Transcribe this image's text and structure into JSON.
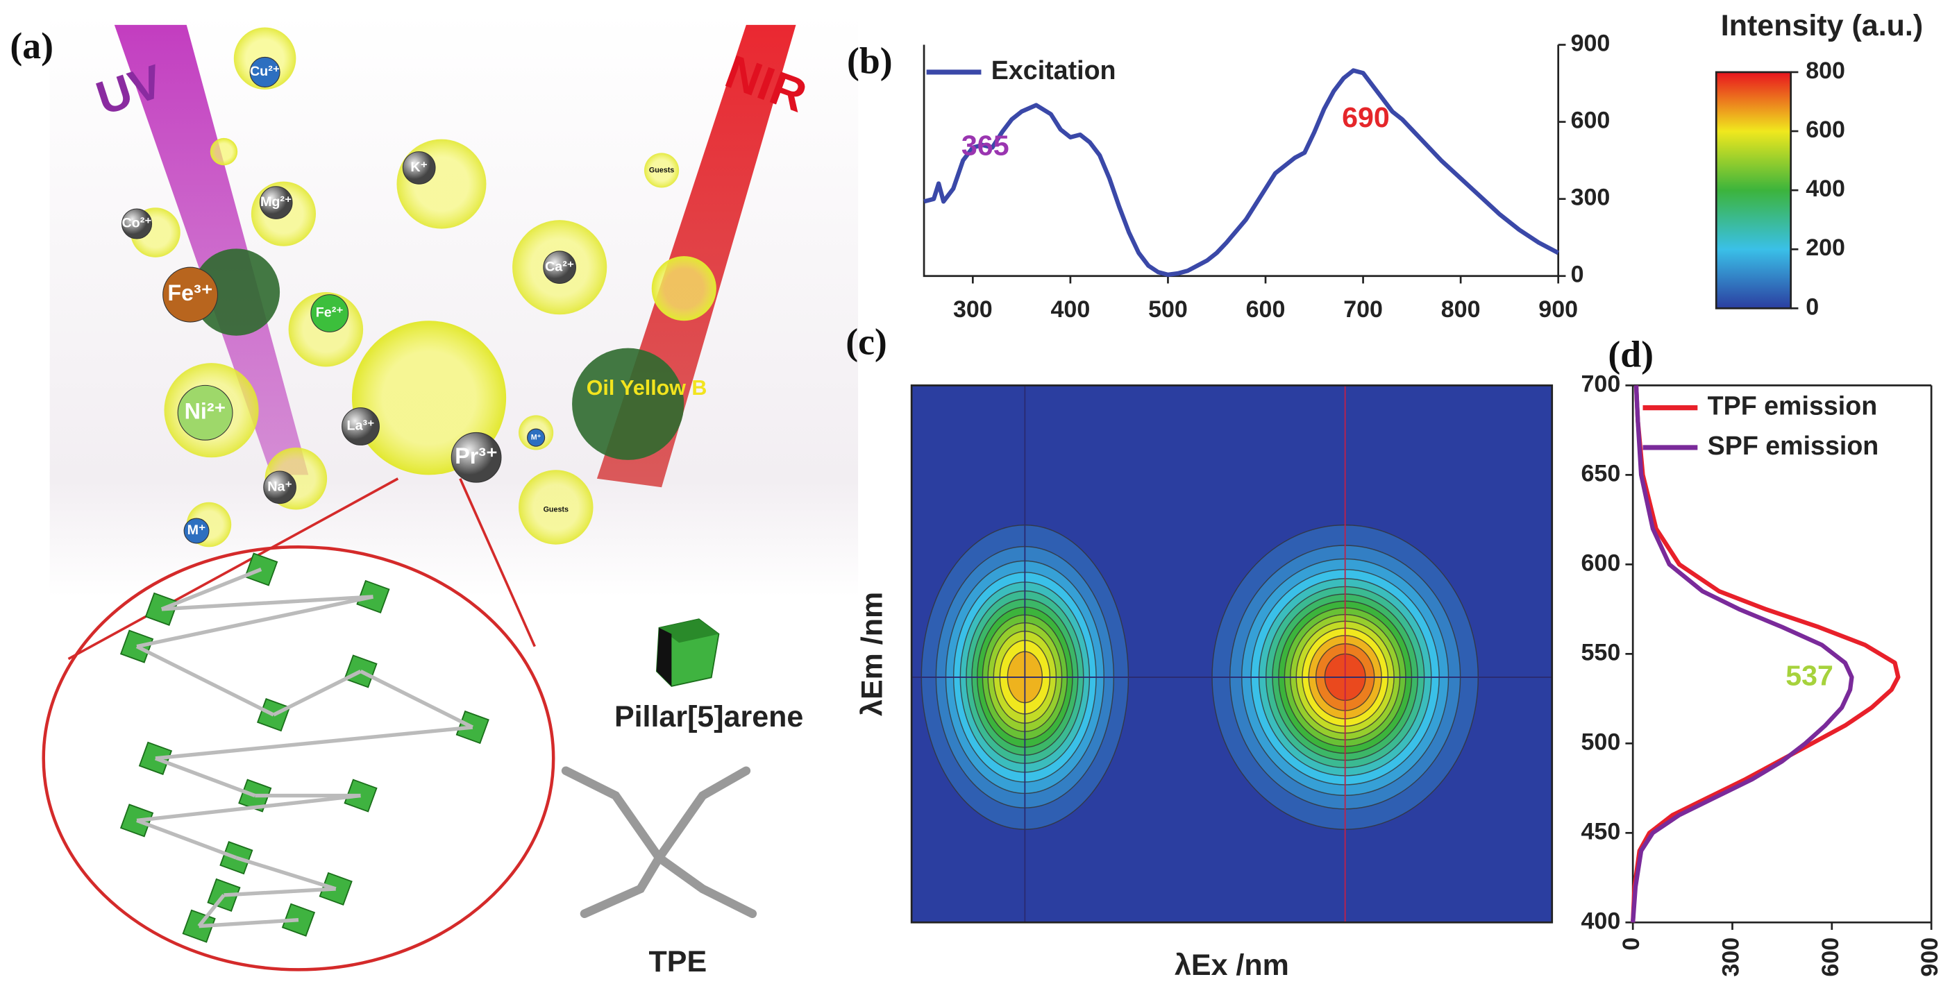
{
  "illustration": {
    "panel_label": "(a)",
    "beams": [
      "UV",
      "NIR"
    ],
    "labels": [
      "Cu²⁺",
      "K⁺",
      "Guests",
      "Mg²⁺",
      "Co²⁺",
      "Fe³⁺",
      "Fe²⁺",
      "Ca²⁺",
      "Ni²⁺",
      "La³⁺",
      "Pr³⁺",
      "Na⁺",
      "M⁺",
      "Guests",
      "Oil Yellow B",
      "M⁺"
    ],
    "molecules": [
      "Pillar[5]arene",
      "TPE"
    ]
  },
  "chart_data": [
    {
      "type": "line",
      "panel_label": "(b)",
      "x": [
        250,
        260,
        265,
        270,
        280,
        290,
        300,
        310,
        320,
        330,
        340,
        350,
        365,
        380,
        390,
        400,
        410,
        420,
        430,
        440,
        450,
        460,
        470,
        480,
        490,
        500,
        510,
        520,
        530,
        540,
        550,
        560,
        580,
        600,
        610,
        620,
        630,
        640,
        650,
        660,
        670,
        680,
        690,
        700,
        710,
        720,
        730,
        740,
        750,
        760,
        780,
        800,
        820,
        840,
        860,
        880,
        900
      ],
      "series": [
        {
          "name": "Excitation",
          "color": "#3a48a8",
          "values": [
            290,
            300,
            360,
            290,
            340,
            450,
            500,
            510,
            500,
            560,
            610,
            640,
            665,
            630,
            570,
            540,
            550,
            520,
            470,
            380,
            270,
            170,
            90,
            40,
            15,
            5,
            10,
            20,
            40,
            60,
            90,
            130,
            220,
            340,
            400,
            430,
            460,
            480,
            560,
            650,
            720,
            770,
            800,
            790,
            740,
            690,
            640,
            610,
            570,
            530,
            450,
            380,
            310,
            240,
            180,
            130,
            90
          ]
        }
      ],
      "annotations": [
        {
          "text": "365",
          "color": "#9a35b0"
        },
        {
          "text": "690",
          "color": "#e5262a"
        }
      ],
      "xlim": [
        250,
        900
      ],
      "xticks": [
        300,
        400,
        500,
        600,
        700,
        800,
        900
      ],
      "ylim": [
        0,
        900
      ],
      "yticks": [
        0,
        300,
        600,
        900
      ]
    },
    {
      "type": "contour",
      "panel_label": "(c)",
      "xlabel": "λEx /nm",
      "ylabel": "λEm /nm",
      "xlim": [
        250,
        900
      ],
      "ylim": [
        400,
        700
      ],
      "peaks": [
        {
          "x": 365,
          "y": 537,
          "value": 700
        },
        {
          "x": 690,
          "y": 537,
          "value": 800
        }
      ],
      "levels": [
        50,
        100,
        150,
        200,
        250,
        300,
        350,
        400,
        450,
        500,
        550,
        600,
        650,
        700,
        750
      ]
    },
    {
      "type": "line",
      "orientation": "horizontal",
      "panel_label": "(d)",
      "y": [
        400,
        420,
        440,
        450,
        460,
        470,
        480,
        490,
        500,
        510,
        520,
        530,
        537,
        545,
        555,
        565,
        575,
        585,
        600,
        620,
        650,
        680,
        700
      ],
      "series": [
        {
          "name": "TPF emission",
          "color": "#e8202a",
          "values": [
            0,
            5,
            20,
            50,
            120,
            230,
            340,
            440,
            540,
            640,
            720,
            780,
            800,
            790,
            700,
            560,
            400,
            260,
            140,
            70,
            30,
            15,
            10
          ]
        },
        {
          "name": "SPF emission",
          "color": "#7a2a9a",
          "values": [
            0,
            8,
            25,
            60,
            140,
            250,
            360,
            450,
            520,
            580,
            630,
            655,
            660,
            640,
            570,
            450,
            320,
            210,
            110,
            60,
            25,
            15,
            10
          ]
        }
      ],
      "annotations": [
        {
          "text": "537",
          "color": "#a6d23c"
        }
      ],
      "xlim": [
        0,
        900
      ],
      "xticks": [
        0,
        300,
        600,
        900
      ],
      "ylim": [
        400,
        700
      ],
      "yticks": [
        400,
        450,
        500,
        550,
        600,
        650,
        700
      ]
    },
    {
      "type": "colorbar",
      "title": "Intensity (a.u.)",
      "ylim": [
        0,
        800
      ],
      "yticks": [
        0,
        200,
        400,
        600,
        800
      ],
      "colors": [
        "#2b3ea0",
        "#3ac0e8",
        "#3cb43c",
        "#f0e81e",
        "#e8141e"
      ]
    }
  ]
}
